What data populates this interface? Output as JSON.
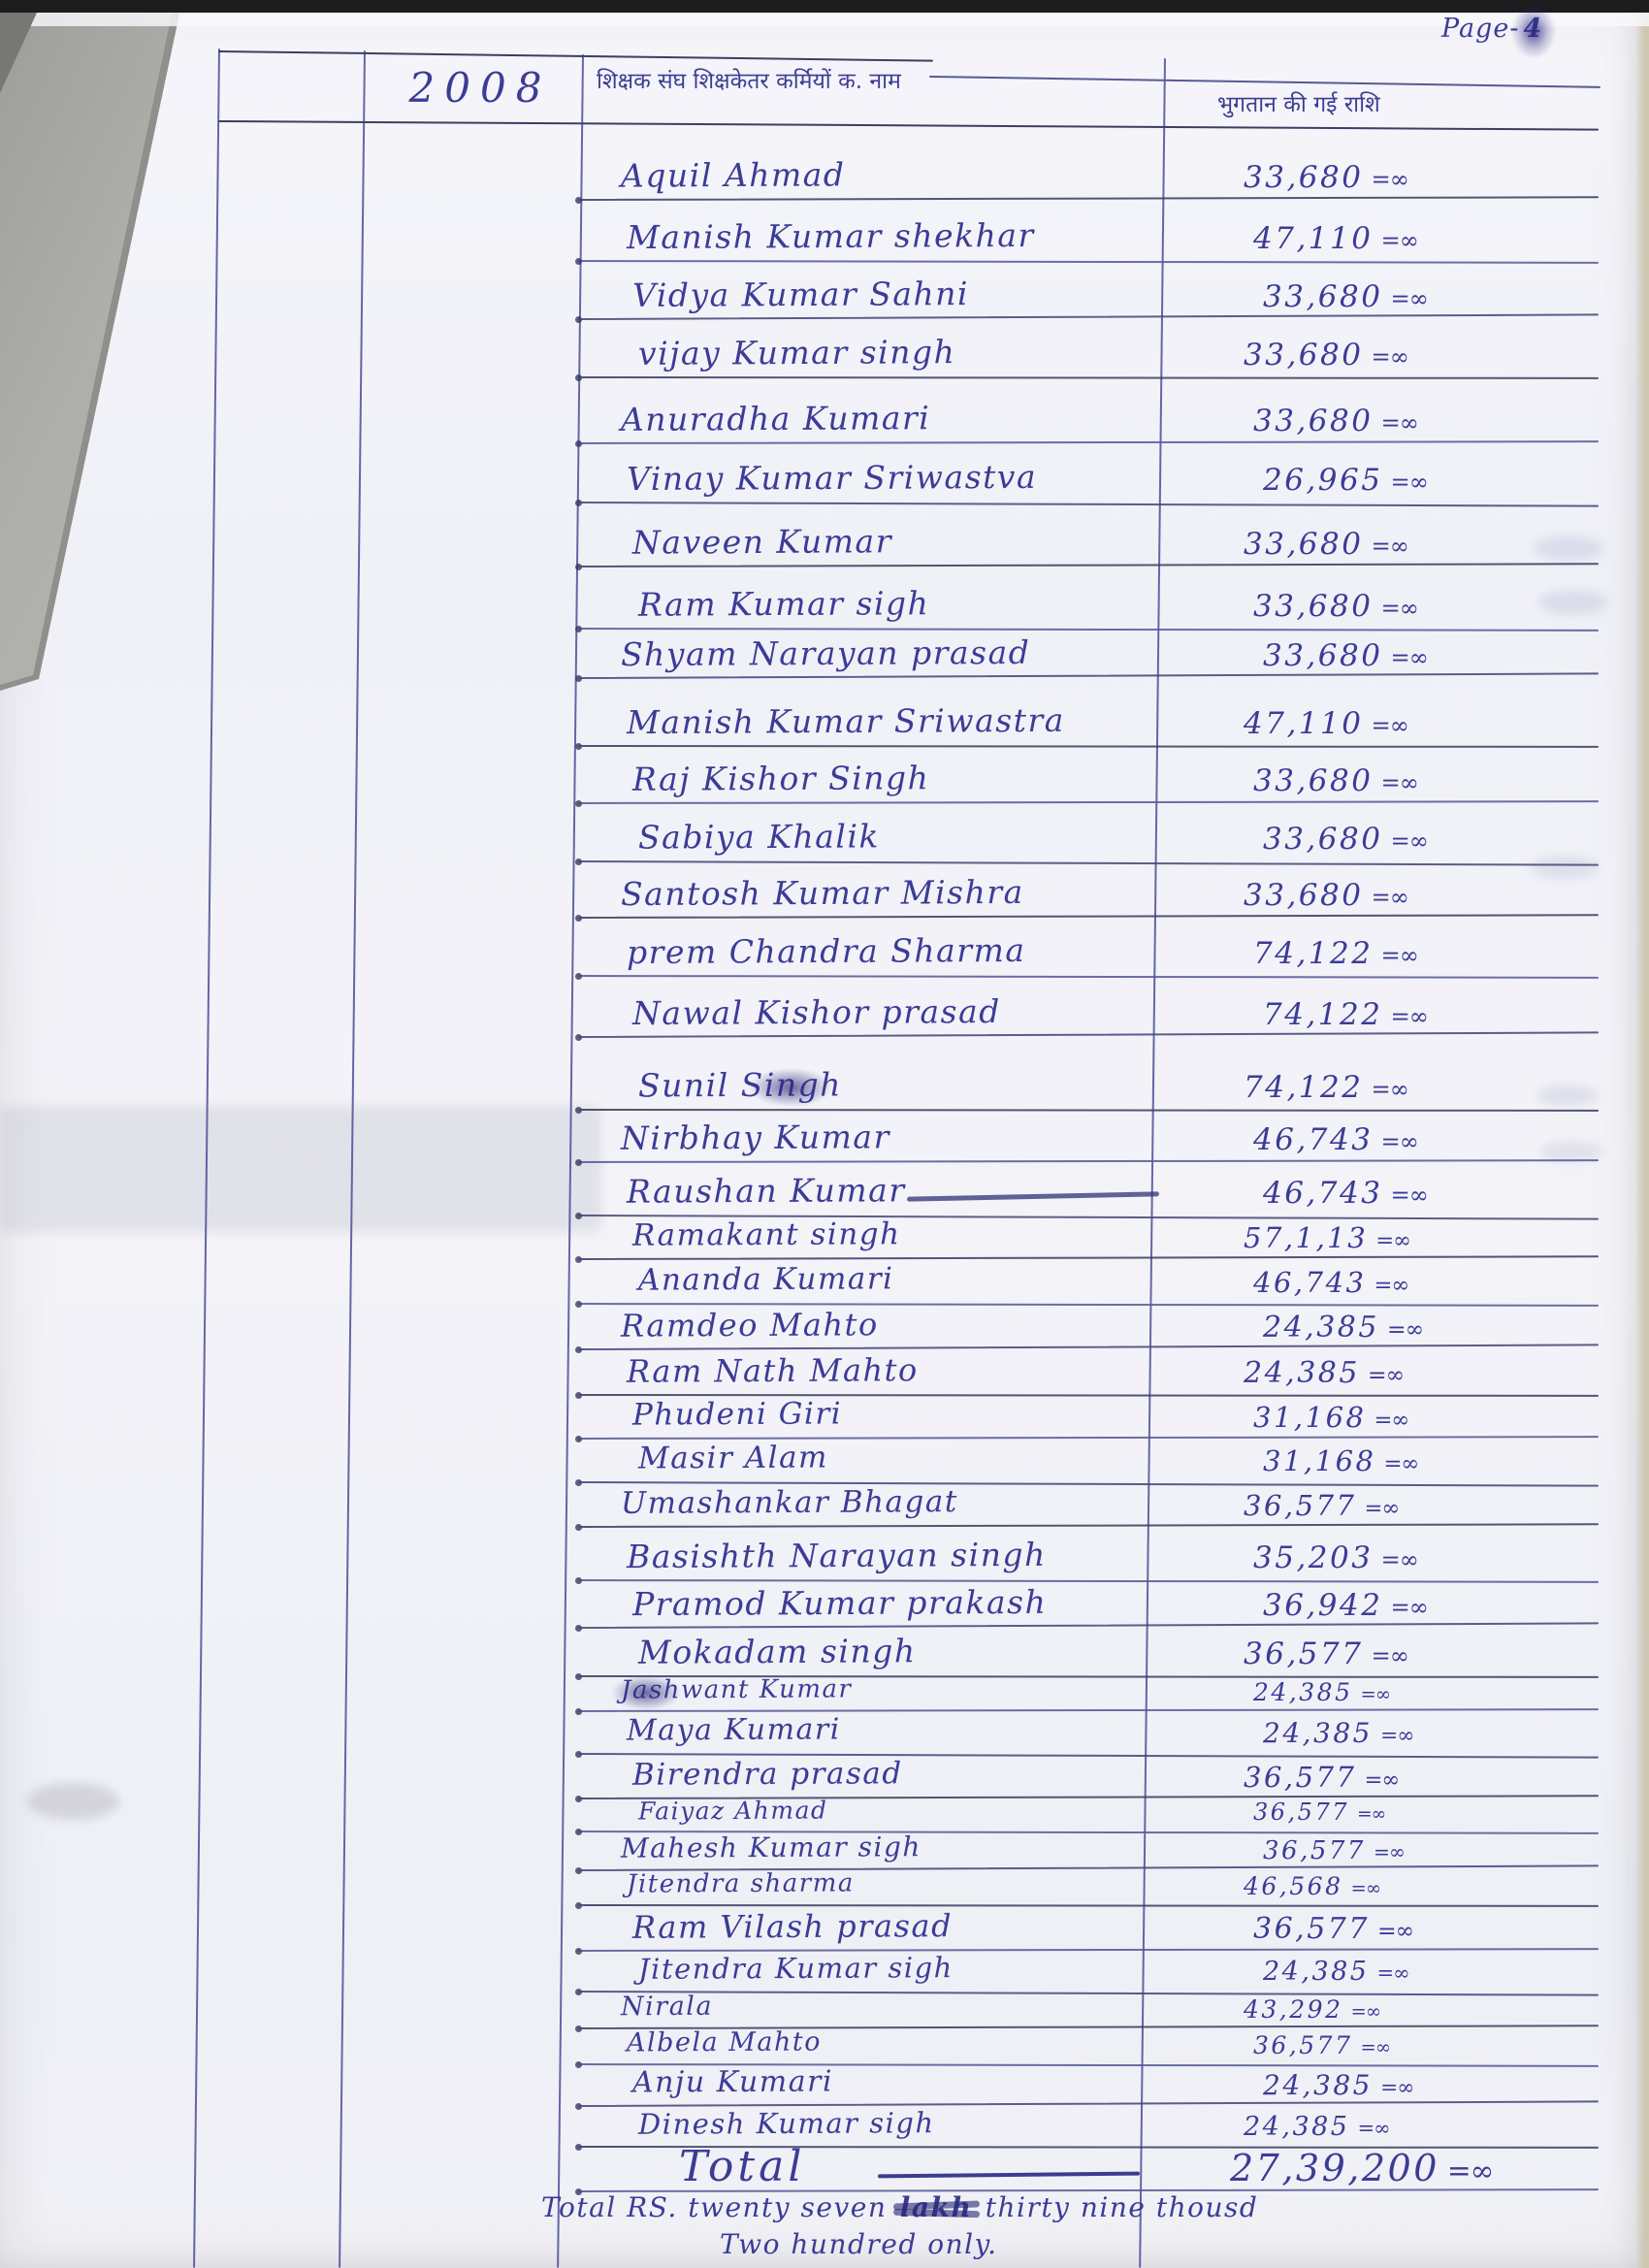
{
  "document": {
    "page_label_prefix": "Page-",
    "page_number": "4",
    "year": "2008",
    "header": {
      "name_column": "शिक्षक संघ शिक्षकेतर कर्मियों क. नाम",
      "amount_column": "भुगतान की गई राशि"
    },
    "amount_suffix": "=∞",
    "entries": [
      {
        "name": "Aquil Ahmad",
        "amount": "33,680"
      },
      {
        "name": "Manish Kumar shekhar",
        "amount": "47,110"
      },
      {
        "name": "Vidya Kumar Sahni",
        "amount": "33,680"
      },
      {
        "name": "vijay Kumar singh",
        "amount": "33,680"
      },
      {
        "name": "Anuradha Kumari",
        "amount": "33,680"
      },
      {
        "name": "Vinay Kumar Sriwastva",
        "amount": "26,965"
      },
      {
        "name": "Naveen Kumar",
        "amount": "33,680"
      },
      {
        "name": "Ram Kumar sigh",
        "amount": "33,680"
      },
      {
        "name": "Shyam Narayan prasad",
        "amount": "33,680"
      },
      {
        "name": "Manish Kumar Sriwastra",
        "amount": "47,110"
      },
      {
        "name": "Raj Kishor Singh",
        "amount": "33,680"
      },
      {
        "name": "Sabiya Khalik",
        "amount": "33,680"
      },
      {
        "name": "Santosh Kumar Mishra",
        "amount": "33,680"
      },
      {
        "name": "prem Chandra Sharma",
        "amount": "74,122"
      },
      {
        "name": "Nawal Kishor prasad",
        "amount": "74,122"
      },
      {
        "name": "Sunil Singh",
        "amount": "74,122",
        "mark": "overwritten-surname"
      },
      {
        "name": "Nirbhay Kumar",
        "amount": "46,743"
      },
      {
        "name": "Raushan Kumar",
        "amount": "46,743",
        "mark": "strikeout-after-name"
      },
      {
        "name": "Ramakant singh",
        "amount": "57,1,13"
      },
      {
        "name": "Ananda Kumari",
        "amount": "46,743"
      },
      {
        "name": "Ramdeo Mahto",
        "amount": "24,385"
      },
      {
        "name": "Ram Nath Mahto",
        "amount": "24,385"
      },
      {
        "name": "Phudeni Giri",
        "amount": "31,168"
      },
      {
        "name": "Masir Alam",
        "amount": "31,168"
      },
      {
        "name": "Umashankar Bhagat",
        "amount": "36,577"
      },
      {
        "name": "Basishth Narayan singh",
        "amount": "35,203"
      },
      {
        "name": "Pramod Kumar prakash",
        "amount": "36,942"
      },
      {
        "name": "Mokadam singh",
        "amount": "36,577"
      },
      {
        "name": "Jashwant Kumar",
        "amount": "24,385",
        "mark": "overwritten-first-letters"
      },
      {
        "name": "Maya Kumari",
        "amount": "24,385"
      },
      {
        "name": "Birendra prasad",
        "amount": "36,577"
      },
      {
        "name": "Faiyaz Ahmad",
        "amount": "36,577"
      },
      {
        "name": "Mahesh Kumar sigh",
        "amount": "36,577"
      },
      {
        "name": "Jitendra sharma",
        "amount": "46,568"
      },
      {
        "name": "Ram Vilash prasad",
        "amount": "36,577"
      },
      {
        "name": "Jitendra Kumar sigh",
        "amount": "24,385"
      },
      {
        "name": "Nirala",
        "amount": "43,292"
      },
      {
        "name": "Albela Mahto",
        "amount": "36,577"
      },
      {
        "name": "Anju Kumari",
        "amount": "24,385"
      },
      {
        "name": "Dinesh Kumar sigh",
        "amount": "24,385"
      }
    ],
    "total": {
      "label": "Total",
      "amount": "27,39,200"
    },
    "footer": {
      "line1_prefix": "Total RS. twenty seven ",
      "struck_word": "lakh",
      "line1_suffix": " thirty nine thousd",
      "line2": "Two hundred only."
    }
  }
}
